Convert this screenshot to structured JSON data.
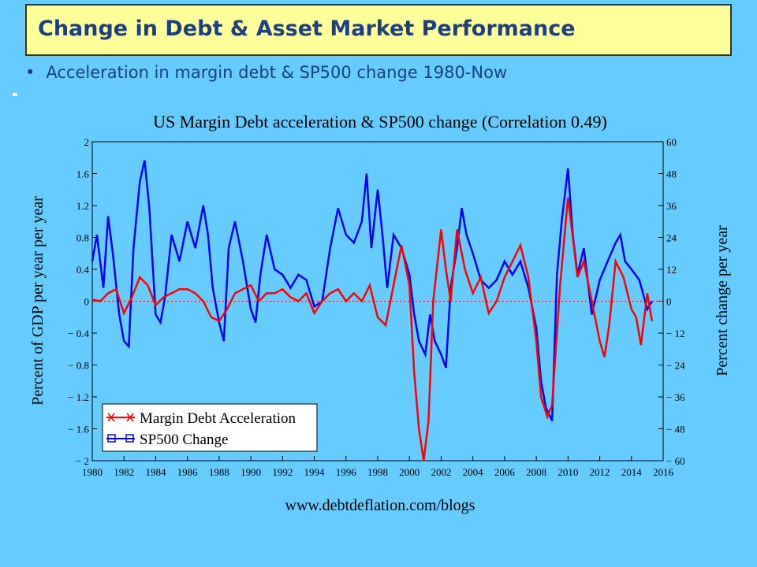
{
  "slide": {
    "title": "Change in Debt & Asset Market Performance",
    "bullet": "Acceleration in margin debt & SP500 change 1980-Now"
  },
  "colors": {
    "background": "#66ccff",
    "title_box": "#ffff99",
    "title_text": "#1c3f80",
    "margin_debt": "#ff0000",
    "sp500": "#0000ff"
  },
  "chart_data": {
    "type": "line",
    "title": "US Margin Debt acceleration & SP500 change (Correlation 0.49)",
    "ylabel": "Percent of GDP per year per year",
    "y2label": "Percent change per year",
    "footer": "www.debtdeflation.com/blogs",
    "xlim": [
      1980,
      2016
    ],
    "ylim": [
      -2,
      2
    ],
    "y2lim": [
      -60,
      60
    ],
    "x_ticks": [
      "1980",
      "1982",
      "1984",
      "1986",
      "1988",
      "1990",
      "1992",
      "1994",
      "1996",
      "1998",
      "2000",
      "2002",
      "2004",
      "2006",
      "2008",
      "2010",
      "2012",
      "2014",
      "2016"
    ],
    "y_ticks": [
      "2",
      "1.6",
      "1.2",
      "0.8",
      "0.4",
      "0",
      "− 0.4",
      "− 0.8",
      "− 1.2",
      "− 1.6",
      "− 2"
    ],
    "y2_ticks": [
      "60",
      "48",
      "36",
      "24",
      "12",
      "0",
      "− 12",
      "− 24",
      "− 36",
      "− 48",
      "− 60"
    ],
    "legend": {
      "position": "bottom-left",
      "entries": [
        "Margin Debt Acceleration",
        "SP500 Change"
      ]
    },
    "series": [
      {
        "name": "Margin Debt Acceleration",
        "axis": "left",
        "color": "#ff0000",
        "x": [
          1980,
          1980.5,
          1981,
          1981.5,
          1982,
          1982.5,
          1983,
          1983.5,
          1984,
          1984.5,
          1985,
          1985.5,
          1986,
          1986.5,
          1987,
          1987.5,
          1988,
          1988.5,
          1989,
          1989.5,
          1990,
          1990.5,
          1991,
          1991.5,
          1992,
          1992.5,
          1993,
          1993.5,
          1994,
          1994.5,
          1995,
          1995.5,
          1996,
          1996.5,
          1997,
          1997.5,
          1998,
          1998.5,
          1999,
          1999.2,
          1999.5,
          2000,
          2000.3,
          2000.6,
          2000.9,
          2001.2,
          2001.5,
          2002,
          2002.3,
          2002.6,
          2003,
          2003.5,
          2004,
          2004.5,
          2005,
          2005.5,
          2006,
          2006.5,
          2007,
          2007.5,
          2008,
          2008.3,
          2008.7,
          2009,
          2009.5,
          2010,
          2010.3,
          2010.6,
          2011,
          2011.5,
          2012,
          2012.3,
          2012.6,
          2013,
          2013.5,
          2014,
          2014.3,
          2014.6,
          2015,
          2015.3
        ],
        "y": [
          0.02,
          0.0,
          0.1,
          0.15,
          -0.15,
          0.05,
          0.3,
          0.2,
          -0.05,
          0.05,
          0.1,
          0.15,
          0.15,
          0.1,
          0.0,
          -0.2,
          -0.25,
          -0.1,
          0.1,
          0.15,
          0.2,
          0.0,
          0.1,
          0.1,
          0.15,
          0.05,
          0.0,
          0.1,
          -0.15,
          0.0,
          0.1,
          0.15,
          0.0,
          0.1,
          0.0,
          0.2,
          -0.2,
          -0.3,
          0.2,
          0.4,
          0.7,
          0.2,
          -0.9,
          -1.6,
          -2.0,
          -1.5,
          0.0,
          0.9,
          0.4,
          0.0,
          0.9,
          0.4,
          0.1,
          0.3,
          -0.15,
          0.0,
          0.3,
          0.5,
          0.7,
          0.3,
          -0.5,
          -1.2,
          -1.45,
          -1.3,
          0.2,
          1.3,
          0.8,
          0.3,
          0.5,
          0.0,
          -0.5,
          -0.7,
          -0.3,
          0.5,
          0.3,
          -0.1,
          -0.2,
          -0.55,
          0.1,
          -0.25
        ]
      },
      {
        "name": "SP500 Change",
        "axis": "right",
        "color": "#0000ff",
        "x": [
          1980,
          1980.3,
          1980.7,
          1981,
          1981.3,
          1981.7,
          1982,
          1982.3,
          1982.6,
          1983,
          1983.3,
          1983.6,
          1984,
          1984.3,
          1984.6,
          1985,
          1985.5,
          1986,
          1986.5,
          1987,
          1987.3,
          1987.6,
          1988,
          1988.3,
          1988.6,
          1989,
          1989.5,
          1990,
          1990.3,
          1990.6,
          1991,
          1991.5,
          1992,
          1992.5,
          1993,
          1993.5,
          1994,
          1994.5,
          1995,
          1995.5,
          1996,
          1996.5,
          1997,
          1997.3,
          1997.6,
          1998,
          1998.3,
          1998.6,
          1999,
          1999.5,
          2000,
          2000.3,
          2000.6,
          2001,
          2001.3,
          2001.6,
          2002,
          2002.3,
          2002.6,
          2003,
          2003.3,
          2003.6,
          2004,
          2004.5,
          2005,
          2005.5,
          2006,
          2006.5,
          2007,
          2007.5,
          2008,
          2008.3,
          2008.6,
          2009,
          2009.3,
          2009.6,
          2010,
          2010.3,
          2010.6,
          2011,
          2011.5,
          2012,
          2012.5,
          2013,
          2013.3,
          2013.6,
          2014,
          2014.5,
          2015,
          2015.3
        ],
        "y": [
          15,
          25,
          5,
          32,
          18,
          -5,
          -15,
          -17,
          20,
          45,
          53,
          35,
          -5,
          -8,
          2,
          25,
          15,
          30,
          20,
          36,
          25,
          5,
          -8,
          -15,
          20,
          30,
          15,
          -3,
          -8,
          10,
          25,
          12,
          10,
          5,
          10,
          8,
          -2,
          0,
          20,
          35,
          25,
          22,
          30,
          48,
          20,
          42,
          25,
          5,
          25,
          20,
          10,
          -5,
          -15,
          -20,
          -5,
          -15,
          -20,
          -25,
          5,
          20,
          35,
          25,
          18,
          8,
          5,
          8,
          15,
          10,
          15,
          5,
          -10,
          -30,
          -40,
          -45,
          10,
          30,
          50,
          25,
          10,
          20,
          -5,
          8,
          15,
          22,
          25,
          15,
          12,
          8,
          -3,
          0
        ]
      }
    ]
  }
}
